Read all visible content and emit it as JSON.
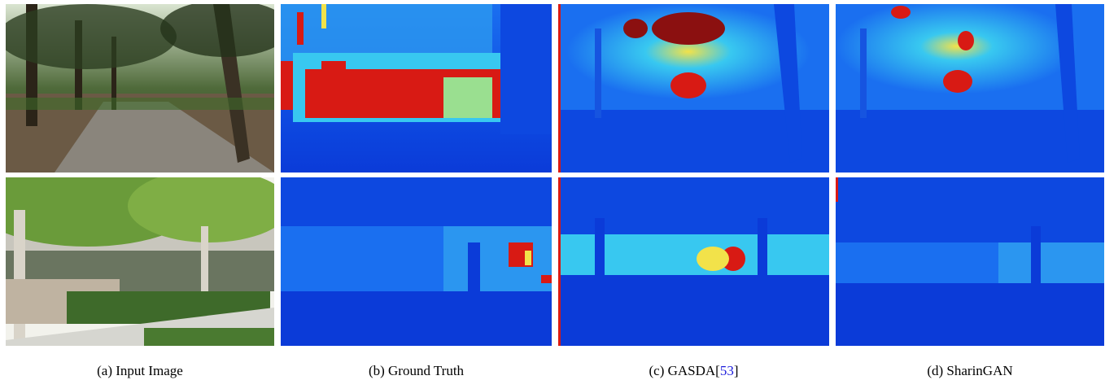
{
  "figure": {
    "captions": [
      {
        "prefix": "(a) Input Image",
        "cite": "",
        "suffix": ""
      },
      {
        "prefix": "(b) Ground Truth",
        "cite": "",
        "suffix": ""
      },
      {
        "prefix": "(c) GASDA[",
        "cite": "53",
        "suffix": "]"
      },
      {
        "prefix": "(d) SharinGAN",
        "cite": "",
        "suffix": ""
      }
    ],
    "rows": [
      {
        "scene": "park path with oak trees"
      },
      {
        "scene": "house facade with street trees and hedges"
      }
    ],
    "colors": {
      "near": "#0b3bd8",
      "mid": "#2fa0f0",
      "far": "#d81a14",
      "cite_link": "#1a1adb"
    }
  }
}
